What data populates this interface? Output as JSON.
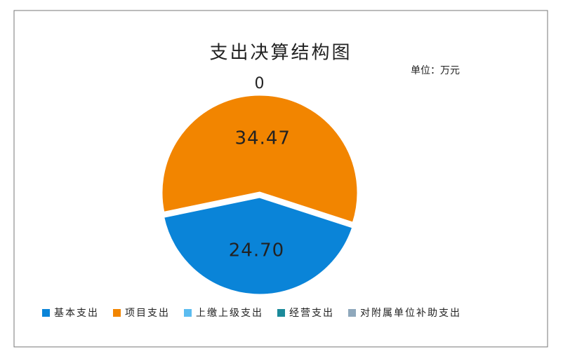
{
  "chart_data": {
    "type": "pie",
    "title": "支出决算结构图",
    "subtitle": "单位：万元",
    "categories": [
      "基本支出",
      "项目支出",
      "上缴上级支出",
      "经营支出",
      "对附属单位补助支出"
    ],
    "values": [
      24.7,
      34.47,
      0,
      0,
      0
    ],
    "value_labels": [
      "24.70",
      "34.47",
      "0",
      null,
      null
    ],
    "colors": [
      "#0a84d8",
      "#f28500",
      "#5bbcf0",
      "#1b8a9a",
      "#8fa8bc"
    ],
    "legend": "bottom"
  }
}
